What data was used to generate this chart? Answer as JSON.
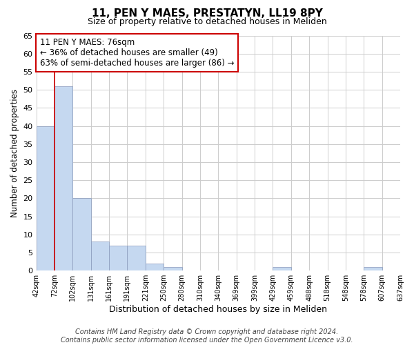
{
  "title": "11, PEN Y MAES, PRESTATYN, LL19 8PY",
  "subtitle": "Size of property relative to detached houses in Meliden",
  "xlabel": "Distribution of detached houses by size in Meliden",
  "ylabel": "Number of detached properties",
  "bin_labels": [
    "42sqm",
    "72sqm",
    "102sqm",
    "131sqm",
    "161sqm",
    "191sqm",
    "221sqm",
    "250sqm",
    "280sqm",
    "310sqm",
    "340sqm",
    "369sqm",
    "399sqm",
    "429sqm",
    "459sqm",
    "488sqm",
    "518sqm",
    "548sqm",
    "578sqm",
    "607sqm",
    "637sqm"
  ],
  "counts": [
    40,
    51,
    20,
    8,
    7,
    7,
    2,
    1,
    0,
    0,
    0,
    0,
    0,
    1,
    0,
    0,
    0,
    0,
    1,
    0
  ],
  "bar_color": "#c5d8f0",
  "bar_edge_color": "#aaaacc",
  "grid_color": "#cccccc",
  "property_line_x": 1,
  "property_line_color": "#cc0000",
  "ylim": [
    0,
    65
  ],
  "yticks": [
    0,
    5,
    10,
    15,
    20,
    25,
    30,
    35,
    40,
    45,
    50,
    55,
    60,
    65
  ],
  "annotation_line1": "11 PEN Y MAES: 76sqm",
  "annotation_line2": "← 36% of detached houses are smaller (49)",
  "annotation_line3": "63% of semi-detached houses are larger (86) →",
  "annotation_box_color": "#ffffff",
  "annotation_box_edge_color": "#cc0000",
  "footer_line1": "Contains HM Land Registry data © Crown copyright and database right 2024.",
  "footer_line2": "Contains public sector information licensed under the Open Government Licence v3.0.",
  "title_fontsize": 11,
  "subtitle_fontsize": 9,
  "annotation_fontsize": 8.5,
  "footer_fontsize": 7,
  "xlabel_fontsize": 9,
  "ylabel_fontsize": 8.5
}
